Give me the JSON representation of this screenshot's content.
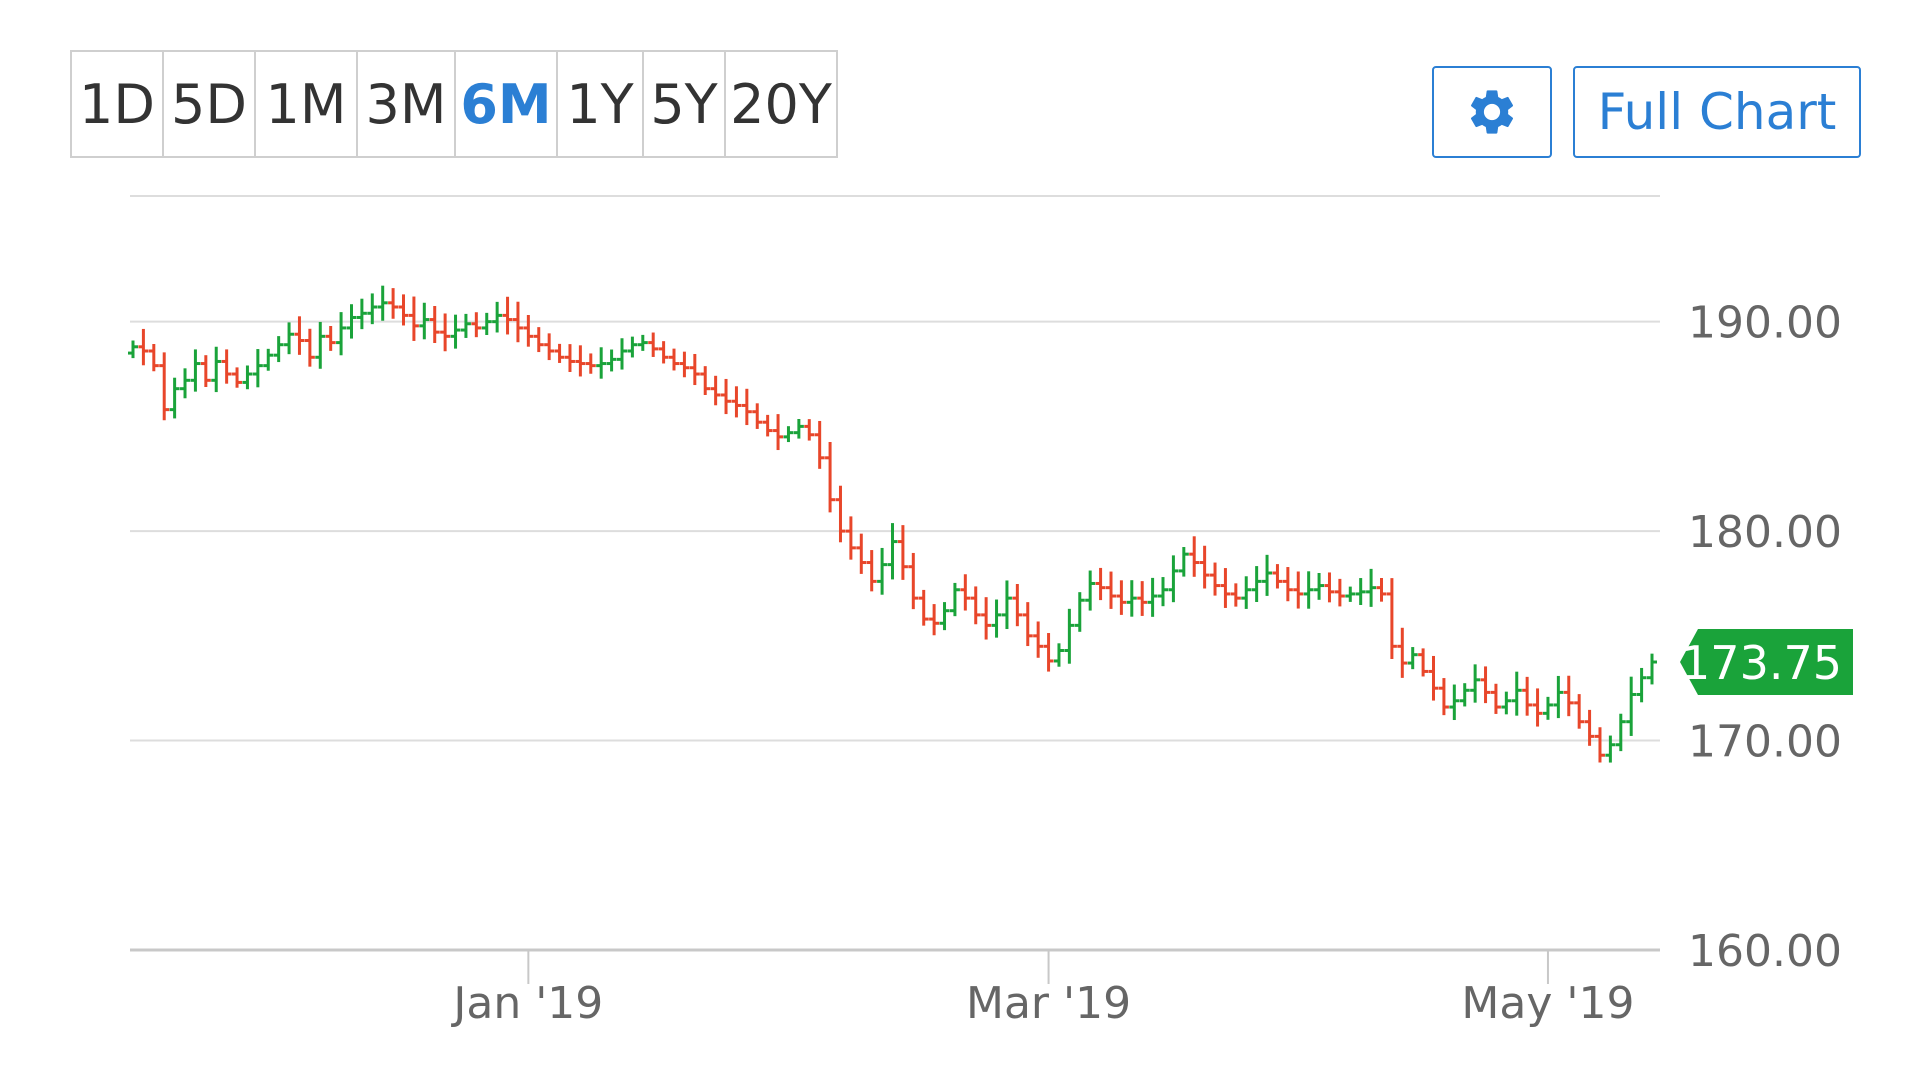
{
  "range_buttons": [
    {
      "label": "1D",
      "active": false
    },
    {
      "label": "5D",
      "active": false
    },
    {
      "label": "1M",
      "active": false
    },
    {
      "label": "3M",
      "active": false
    },
    {
      "label": "6M",
      "active": true
    },
    {
      "label": "1Y",
      "active": false
    },
    {
      "label": "5Y",
      "active": false
    },
    {
      "label": "20Y",
      "active": false
    }
  ],
  "toolbar": {
    "settings_icon": "gear-icon",
    "full_chart_label": "Full Chart"
  },
  "colors": {
    "up": "#1aa33a",
    "down": "#e8462a",
    "accent": "#2b7fd4",
    "last_price_badge": "#1aa33a",
    "grid": "#dddddd"
  },
  "chart_data": {
    "type": "ohlc",
    "title": "",
    "xlabel": "",
    "ylabel": "",
    "ylim": [
      160,
      196
    ],
    "y_ticks": [
      "190.00",
      "180.00",
      "170.00",
      "160.00"
    ],
    "y_tick_values": [
      190,
      180,
      170,
      160
    ],
    "x_ticks": [
      {
        "label": "Jan '19",
        "index": 38
      },
      {
        "label": "Mar '19",
        "index": 88
      },
      {
        "label": "May '19",
        "index": 136
      }
    ],
    "last_price": "173.75",
    "last_price_value": 173.75,
    "grid": true,
    "legend": "none",
    "closes": [
      188.8,
      188.6,
      187.9,
      185.8,
      186.8,
      187.2,
      188.0,
      187.2,
      188.1,
      187.5,
      187.1,
      187.5,
      187.9,
      188.4,
      188.9,
      189.4,
      189.1,
      188.3,
      189.3,
      189.0,
      189.7,
      190.2,
      190.4,
      190.7,
      190.9,
      190.7,
      190.3,
      189.8,
      190.1,
      189.5,
      189.3,
      189.6,
      189.9,
      189.7,
      190.0,
      190.3,
      190.1,
      189.7,
      189.3,
      188.9,
      188.6,
      188.3,
      188.1,
      188.0,
      187.9,
      188.0,
      188.2,
      188.6,
      188.9,
      189.0,
      188.7,
      188.3,
      188.0,
      187.8,
      187.5,
      186.8,
      186.5,
      186.2,
      186.0,
      185.7,
      185.2,
      184.8,
      184.5,
      184.7,
      185.0,
      184.6,
      183.5,
      181.5,
      180.0,
      179.2,
      178.5,
      177.6,
      178.4,
      179.5,
      178.3,
      176.8,
      175.8,
      175.6,
      176.2,
      177.2,
      176.8,
      176.0,
      175.5,
      176.0,
      176.8,
      176.0,
      175.0,
      174.5,
      173.8,
      174.3,
      175.5,
      176.7,
      177.5,
      177.3,
      176.9,
      176.6,
      176.8,
      176.6,
      176.9,
      177.2,
      178.1,
      178.9,
      178.5,
      177.9,
      177.4,
      177.0,
      176.8,
      177.2,
      177.6,
      178.0,
      177.6,
      177.2,
      177.0,
      177.2,
      177.4,
      177.1,
      176.9,
      177.0,
      177.1,
      177.3,
      177.0,
      174.5,
      173.7,
      174.1,
      173.3,
      172.5,
      171.6,
      171.9,
      172.4,
      172.9,
      172.3,
      171.6,
      171.9,
      172.4,
      171.7,
      171.3,
      171.7,
      172.3,
      171.8,
      170.9,
      170.2,
      169.3,
      169.8,
      170.9,
      172.2,
      173.0,
      173.75
    ]
  }
}
